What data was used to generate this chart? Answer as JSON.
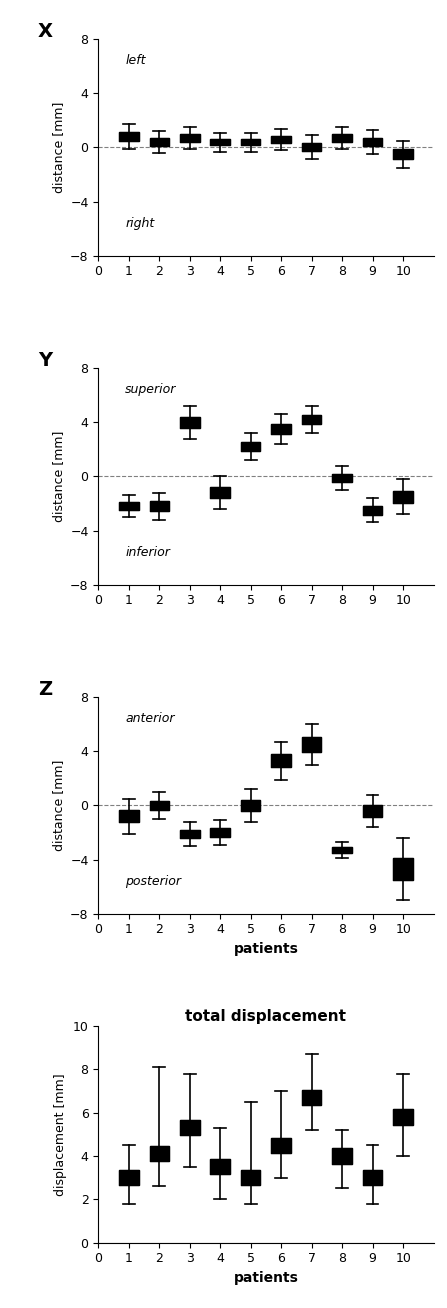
{
  "patients": [
    1,
    2,
    3,
    4,
    5,
    6,
    7,
    8,
    9,
    10
  ],
  "X": {
    "means": [
      0.8,
      0.4,
      0.7,
      0.4,
      0.4,
      0.6,
      0.05,
      0.7,
      0.4,
      -0.5
    ],
    "errors": [
      0.9,
      0.8,
      0.8,
      0.7,
      0.7,
      0.8,
      0.9,
      0.8,
      0.9,
      1.0
    ],
    "label_top": "left",
    "label_bottom": "right",
    "title": "X",
    "ylabel": "distance [mm]",
    "ylim": [
      -8,
      8
    ],
    "yticks": [
      -8,
      -4,
      0,
      4,
      8
    ]
  },
  "Y": {
    "means": [
      -2.2,
      -2.2,
      4.0,
      -1.2,
      2.2,
      3.5,
      4.2,
      -0.1,
      -2.5,
      -1.5
    ],
    "errors": [
      0.8,
      1.0,
      1.2,
      1.2,
      1.0,
      1.1,
      1.0,
      0.9,
      0.9,
      1.3
    ],
    "label_top": "superior",
    "label_bottom": "inferior",
    "title": "Y",
    "ylabel": "distance [mm]",
    "ylim": [
      -8,
      8
    ],
    "yticks": [
      -8,
      -4,
      0,
      4,
      8
    ]
  },
  "Z": {
    "means": [
      -0.8,
      0.0,
      -2.1,
      -2.0,
      0.0,
      3.3,
      4.5,
      -3.3,
      -0.4,
      -4.7
    ],
    "errors": [
      1.3,
      1.0,
      0.9,
      0.9,
      1.2,
      1.4,
      1.5,
      0.6,
      1.2,
      2.3
    ],
    "label_top": "anterior",
    "label_bottom": "posterior",
    "title": "Z",
    "ylabel": "distance [mm]",
    "xlabel": "patients",
    "ylim": [
      -8,
      8
    ],
    "yticks": [
      -8,
      -4,
      0,
      4,
      8
    ]
  },
  "TD": {
    "means": [
      3.0,
      4.1,
      5.3,
      3.5,
      3.0,
      4.5,
      6.7,
      4.0,
      3.0,
      5.8
    ],
    "errors_low": [
      1.2,
      1.5,
      1.8,
      1.5,
      1.2,
      1.5,
      1.5,
      1.5,
      1.2,
      1.8
    ],
    "errors_high": [
      1.5,
      4.0,
      2.5,
      1.8,
      3.5,
      2.5,
      2.0,
      1.2,
      1.5,
      2.0
    ],
    "title": "total displacement",
    "ylabel": "displacement [mm]",
    "xlabel": "patients",
    "ylim": [
      0,
      10
    ],
    "yticks": [
      0,
      2,
      4,
      6,
      8,
      10
    ]
  },
  "dpi": 100
}
